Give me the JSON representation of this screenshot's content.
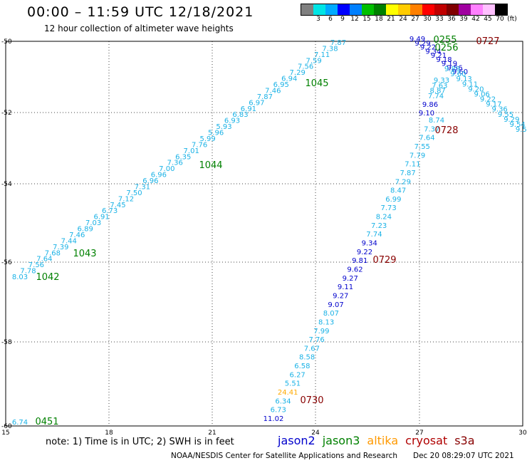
{
  "header": {
    "title": "00:00 – 11:59 UTC 12/18/2021",
    "subtitle": "12 hour collection of altimeter wave heights"
  },
  "colorbar": {
    "colors": [
      "#808080",
      "#00e5e5",
      "#00aaff",
      "#0000ff",
      "#0080ff",
      "#00c000",
      "#008000",
      "#ffff00",
      "#ffcc00",
      "#ff8000",
      "#ff0000",
      "#c00000",
      "#800000",
      "#a000a0",
      "#ff80ff",
      "#ffc0ff",
      "#000000"
    ],
    "ticks": [
      "3",
      "6",
      "9",
      "12",
      "15",
      "18",
      "21",
      "24",
      "27",
      "30",
      "33",
      "36",
      "39",
      "42",
      "45",
      "70",
      "(ft)"
    ]
  },
  "axes": {
    "lon_ticks": [
      "15",
      "18",
      "21",
      "24",
      "27",
      "30"
    ],
    "lat_ticks": [
      "-50",
      "-52",
      "-54",
      "-56",
      "-58",
      "-60"
    ]
  },
  "tracks": {
    "track_a": [
      "8.03",
      "7.78",
      "7.56",
      "7.64",
      "7.68",
      "7.39",
      "7.44",
      "7.46",
      "6.89",
      "7.03",
      "6.91",
      "6.73",
      "7.45",
      "7.12",
      "7.50",
      "7.31",
      "6.96",
      "6.96",
      "7.00",
      "7.36",
      "6.35",
      "7.01",
      "7.76",
      "5.99",
      "5.96",
      "5.93",
      "6.93",
      "6.83",
      "6.91",
      "6.97",
      "7.87",
      "7.46",
      "6.95",
      "6.94",
      "7.29",
      "7.56",
      "7.59",
      "7.11",
      "7.38",
      "7.87"
    ],
    "track_b": [
      "8.74",
      "7.37",
      "7.64",
      "7.55",
      "7.79",
      "7.11",
      "7.87",
      "7.29",
      "8.47",
      "6.99",
      "7.73",
      "8.24",
      "7.23",
      "7.74",
      "9.34",
      "9.22",
      "9.81",
      "9.62",
      "9.27",
      "9.11",
      "9.27",
      "9.07",
      "8.07",
      "8.13",
      "7.99",
      "7.76",
      "7.67",
      "8.58",
      "6.58",
      "6.27",
      "5.51",
      "24.41",
      "6.34",
      "6.73",
      "11.02"
    ],
    "track_b_extra": [
      "9.86",
      "9.10"
    ],
    "track_c": [
      "9.33",
      "7.63",
      "8.87",
      "7.74"
    ],
    "cluster": [
      "9.49",
      "9.29",
      "9.22",
      "9.34",
      "9.21",
      "9.18",
      "9.19",
      "9.56",
      "9.60"
    ],
    "diag_right": [
      "9.89",
      "9.60",
      "9.13",
      "9.11",
      "9.20",
      "9.06",
      "9.22",
      "9.17",
      "9.36",
      "9.55",
      "9.29",
      "9.54",
      "9.50"
    ]
  },
  "pass_ids": {
    "p1042": "1042",
    "p1043": "1043",
    "p1044": "1044",
    "p1045": "1045",
    "p0255": "0255",
    "p0256": "0256",
    "p0727": "0727",
    "p0728": "0728",
    "p0729": "0729",
    "p0730": "0730",
    "p0451": "0451",
    "start_val": "6.74"
  },
  "footer": {
    "note": "note:  1) Time is in UTC;  2) SWH is in feet",
    "legend": [
      {
        "label": "jason2",
        "color": "#0000cc"
      },
      {
        "label": "jason3",
        "color": "#008000"
      },
      {
        "label": "altika",
        "color": "#ff9900"
      },
      {
        "label": "cryosat",
        "color": "#b00000"
      },
      {
        "label": "s3a",
        "color": "#880000"
      }
    ],
    "credit": "NOAA/NESDIS Center for Satellite Applications and Research",
    "timestamp": "Dec 20 08:29:07 UTC 2021"
  }
}
